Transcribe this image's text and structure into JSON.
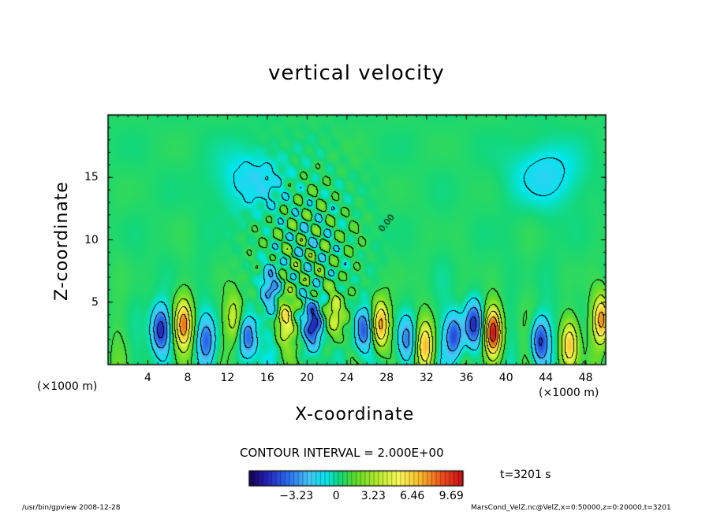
{
  "chart_data": {
    "type": "heatmap",
    "title": "vertical velocity",
    "xlabel": "X-coordinate",
    "ylabel": "Z-coordinate",
    "x_unit_label": "(×1000 m)",
    "x_ticks": [
      4,
      8,
      12,
      16,
      20,
      24,
      28,
      32,
      36,
      40,
      44,
      48
    ],
    "y_ticks": [
      5,
      10,
      15
    ],
    "xlim": [
      0,
      50
    ],
    "ylim": [
      0,
      20
    ],
    "contour_interval_text": "CONTOUR INTERVAL = 2.000E+00",
    "contour_label": "0.00",
    "colorbar": {
      "tick_labels": [
        "-3.23",
        "0",
        "3.23",
        "6.46",
        "9.69"
      ],
      "tick_values": [
        -3.23,
        0,
        3.23,
        6.46,
        9.69
      ],
      "range": [
        -7.2,
        10.5
      ]
    },
    "time_label": "t=3201 s",
    "updrafts": [
      {
        "x": 7.6,
        "z": 3.2,
        "peak": 7.0
      },
      {
        "x": 12.6,
        "z": 3.8,
        "peak": 3.5
      },
      {
        "x": 17.8,
        "z": 3.6,
        "peak": 4.5
      },
      {
        "x": 22.8,
        "z": 4.0,
        "peak": 4.0
      },
      {
        "x": 27.4,
        "z": 3.2,
        "peak": 7.5
      },
      {
        "x": 31.9,
        "z": 1.5,
        "peak": 6.0
      },
      {
        "x": 38.7,
        "z": 2.6,
        "peak": 10.0
      },
      {
        "x": 46.4,
        "z": 1.6,
        "peak": 6.0
      },
      {
        "x": 49.6,
        "z": 3.6,
        "peak": 7.0
      }
    ],
    "downdrafts": [
      {
        "x": 5.3,
        "z": 2.8,
        "peak": -6.0
      },
      {
        "x": 9.9,
        "z": 1.9,
        "peak": -4.0
      },
      {
        "x": 14.1,
        "z": 2.2,
        "peak": -5.0
      },
      {
        "x": 16.4,
        "z": 6.0,
        "peak": -3.5
      },
      {
        "x": 20.6,
        "z": 3.2,
        "peak": -6.0
      },
      {
        "x": 25.6,
        "z": 2.8,
        "peak": -5.5
      },
      {
        "x": 30.0,
        "z": 2.0,
        "peak": -4.0
      },
      {
        "x": 34.8,
        "z": 2.3,
        "peak": -5.5
      },
      {
        "x": 36.7,
        "z": 3.2,
        "peak": -6.0
      },
      {
        "x": 43.4,
        "z": 1.9,
        "peak": -5.5
      },
      {
        "x": 14.5,
        "z": 14.8,
        "peak": -2.0
      },
      {
        "x": 44.0,
        "z": 15.2,
        "peak": -2.0
      }
    ],
    "grid": false,
    "legend": "bottom-center colorbar"
  },
  "footer": {
    "left": "/usr/bin/gpview   2008-12-28",
    "right": "MarsCond_VelZ.nc@VelZ,x=0:50000,z=0:20000,t=3201"
  }
}
